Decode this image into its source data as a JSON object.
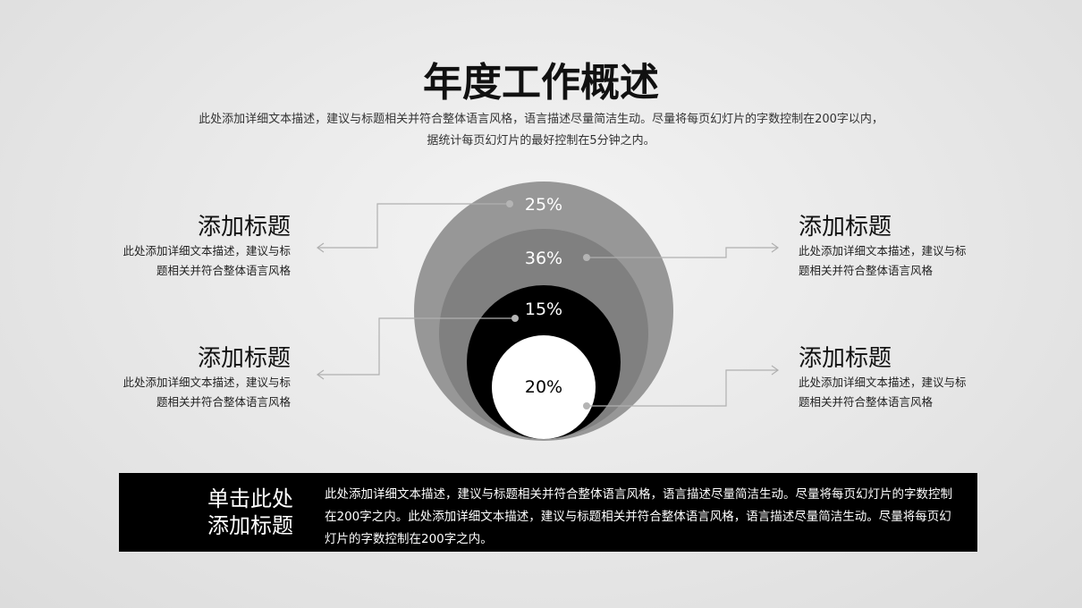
{
  "title": "年度工作概述",
  "subtitle": [
    "此处添加详细文本描述，建议与标题相关并符合整体语言风格，语言描述尽量简洁生动。尽量将每页幻灯片的字数控制在200字以内，",
    "据统计每页幻灯片的最好控制在5分钟之内。"
  ],
  "circles": [
    {
      "label": "25%",
      "color": "#979797"
    },
    {
      "label": "36%",
      "color": "#808080"
    },
    {
      "label": "15%",
      "color": "#000000"
    },
    {
      "label": "20%",
      "color": "#ffffff"
    }
  ],
  "items": [
    {
      "title": "添加标题",
      "text": [
        "此处添加详细文本描述，建议与标",
        "题相关并符合整体语言风格"
      ]
    },
    {
      "title": "添加标题",
      "text": [
        "此处添加详细文本描述，建议与标",
        "题相关并符合整体语言风格"
      ]
    },
    {
      "title": "添加标题",
      "text": [
        "此处添加详细文本描述，建议与标",
        "题相关并符合整体语言风格"
      ]
    },
    {
      "title": "添加标题",
      "text": [
        "此处添加详细文本描述，建议与标",
        "题相关并符合整体语言风格"
      ]
    }
  ],
  "footer": {
    "title": [
      "单击此处",
      "添加标题"
    ],
    "text": "此处添加详细文本描述，建议与标题相关并符合整体语言风格，语言描述尽量简洁生动。尽量将每页幻灯片的字数控制在200字之内。此处添加详细文本描述，建议与标题相关并符合整体语言风格，语言描述尽量简洁生动。尽量将每页幻灯片的字数控制在200字之内。"
  }
}
